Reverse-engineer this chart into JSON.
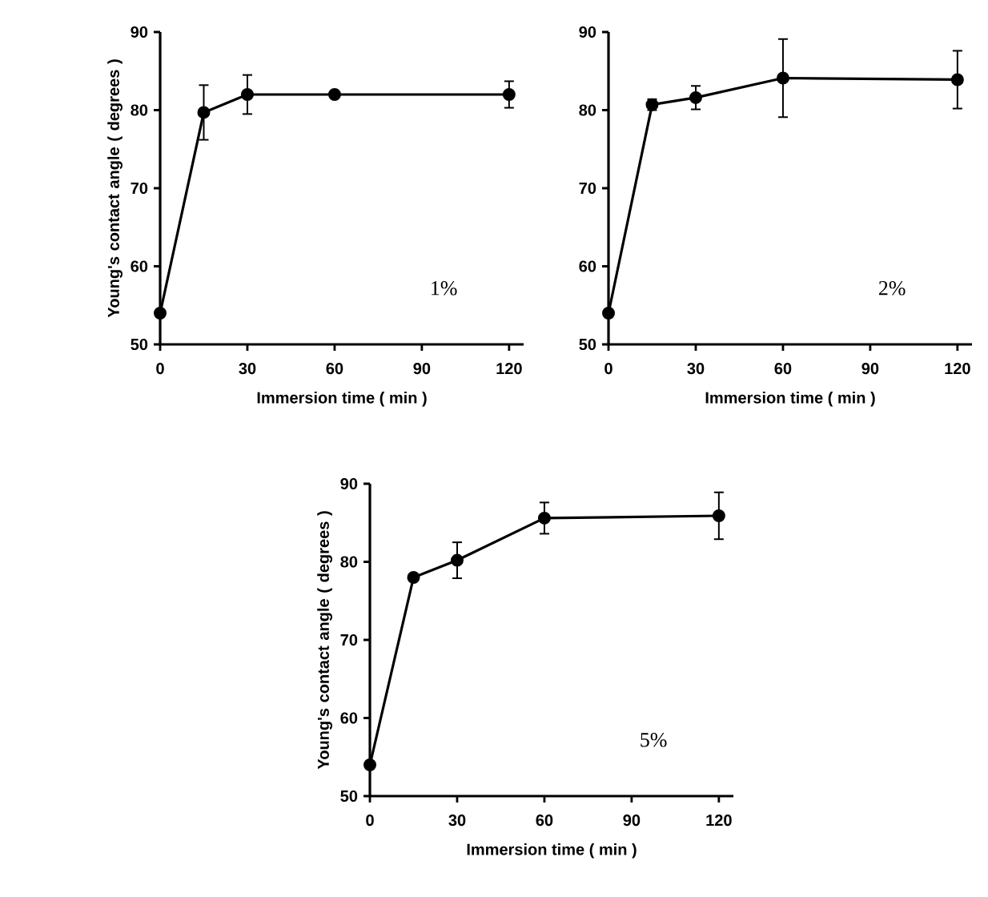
{
  "chart_data": [
    {
      "type": "line",
      "x": [
        0,
        15,
        30,
        60,
        120
      ],
      "xlabel": "Immersion time ( min )",
      "ylabel": "Young's contact angle ( degrees )",
      "annotations": [
        "1%"
      ],
      "xlim": [
        0,
        125
      ],
      "ylim": [
        50,
        90
      ],
      "xticks": [
        0,
        30,
        60,
        90,
        120
      ],
      "yticks": [
        50,
        60,
        70,
        80,
        90
      ],
      "marker": "circle",
      "line_style": "solid",
      "series": [
        {
          "color": "#000000",
          "values": [
            54,
            79.7,
            82,
            82,
            82
          ],
          "errors": [
            null,
            3.5,
            2.5,
            null,
            1.7
          ]
        }
      ]
    },
    {
      "type": "line",
      "x": [
        0,
        15,
        30,
        60,
        120
      ],
      "xlabel": "Immersion time ( min )",
      "annotations": [
        "2%"
      ],
      "xlim": [
        0,
        125
      ],
      "ylim": [
        50,
        90
      ],
      "xticks": [
        0,
        30,
        60,
        90,
        120
      ],
      "yticks": [
        50,
        60,
        70,
        80,
        90
      ],
      "marker": "circle",
      "line_style": "solid",
      "series": [
        {
          "color": "#000000",
          "values": [
            54,
            80.7,
            81.6,
            84.1,
            83.9
          ],
          "errors": [
            null,
            0.7,
            1.5,
            5,
            3.7
          ]
        }
      ]
    },
    {
      "type": "line",
      "x": [
        0,
        15,
        30,
        60,
        120
      ],
      "xlabel": "Immersion time ( min )",
      "ylabel": "Young's contact angle ( degrees )",
      "annotations": [
        "5%"
      ],
      "xlim": [
        0,
        125
      ],
      "ylim": [
        50,
        90
      ],
      "xticks": [
        0,
        30,
        60,
        90,
        120
      ],
      "yticks": [
        50,
        60,
        70,
        80,
        90
      ],
      "marker": "circle",
      "line_style": "solid",
      "series": [
        {
          "color": "#000000",
          "values": [
            54,
            78,
            80.2,
            85.6,
            85.9
          ],
          "errors": [
            null,
            null,
            2.3,
            2,
            3
          ]
        }
      ]
    }
  ]
}
